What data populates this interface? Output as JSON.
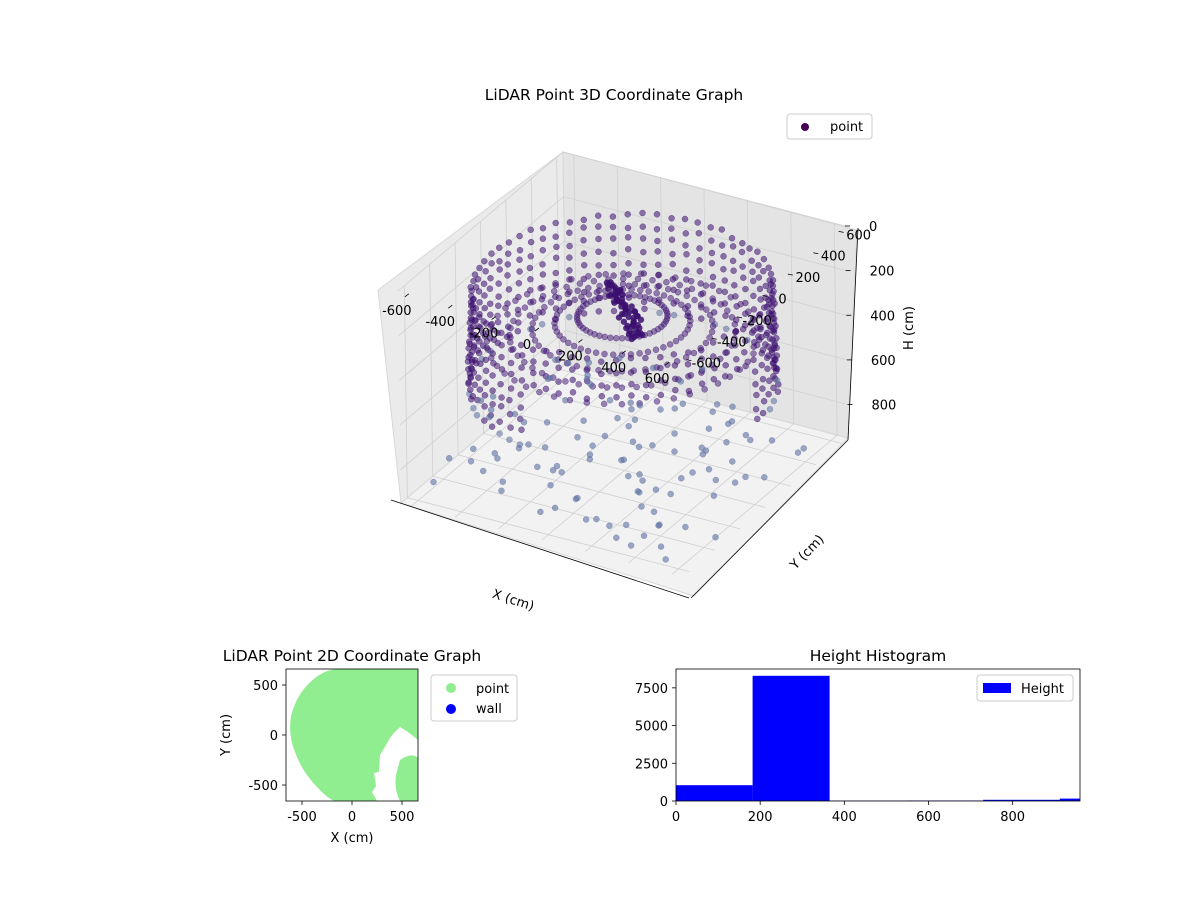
{
  "chart_data": [
    {
      "id": "scatter3d",
      "type": "scatter",
      "title": "LiDAR Point 3D Coordinate Graph",
      "xlabel": "X (cm)",
      "ylabel": "Y (cm)",
      "zlabel": "H (cm)",
      "x_ticks": [
        -600,
        -400,
        -200,
        0,
        200,
        400,
        600
      ],
      "y_ticks": [
        -600,
        -400,
        -200,
        0,
        200,
        400,
        600
      ],
      "z_ticks": [
        0,
        200,
        400,
        600,
        800
      ],
      "xlim": [
        -650,
        650
      ],
      "ylim": [
        -650,
        650
      ],
      "zlim": [
        0,
        950
      ],
      "z_axis_inverted": true,
      "legend": [
        {
          "label": "point",
          "color": "#440154"
        }
      ],
      "legend_position": "upper-right",
      "point_color_dark": "#3b0f70",
      "point_color_light": "#5c6fa0"
    },
    {
      "id": "scatter2d",
      "type": "scatter",
      "title": "LiDAR Point 2D Coordinate Graph",
      "xlabel": "X (cm)",
      "ylabel": "Y (cm)",
      "x_ticks": [
        -500,
        0,
        500
      ],
      "y_ticks": [
        -500,
        0,
        500
      ],
      "xlim": [
        -660,
        660
      ],
      "ylim": [
        -660,
        660
      ],
      "series": [
        {
          "name": "point",
          "color": "#90ee90"
        },
        {
          "name": "wall",
          "color": "#0000ff"
        }
      ],
      "legend_position": "outside-right"
    },
    {
      "id": "histogram",
      "type": "bar",
      "title": "Height Histogram",
      "xlabel": "",
      "ylabel": "",
      "bin_edges": [
        0,
        182,
        365,
        548,
        730,
        912,
        960
      ],
      "values": [
        1050,
        8300,
        20,
        30,
        80,
        160
      ],
      "x_ticks": [
        0,
        200,
        400,
        600,
        800
      ],
      "y_ticks": [
        0,
        2500,
        5000,
        7500
      ],
      "xlim": [
        0,
        960
      ],
      "ylim": [
        0,
        8750
      ],
      "legend": [
        {
          "label": "Height",
          "color": "#0000ff"
        }
      ],
      "legend_position": "upper-right",
      "bar_color": "#0000ff"
    }
  ]
}
